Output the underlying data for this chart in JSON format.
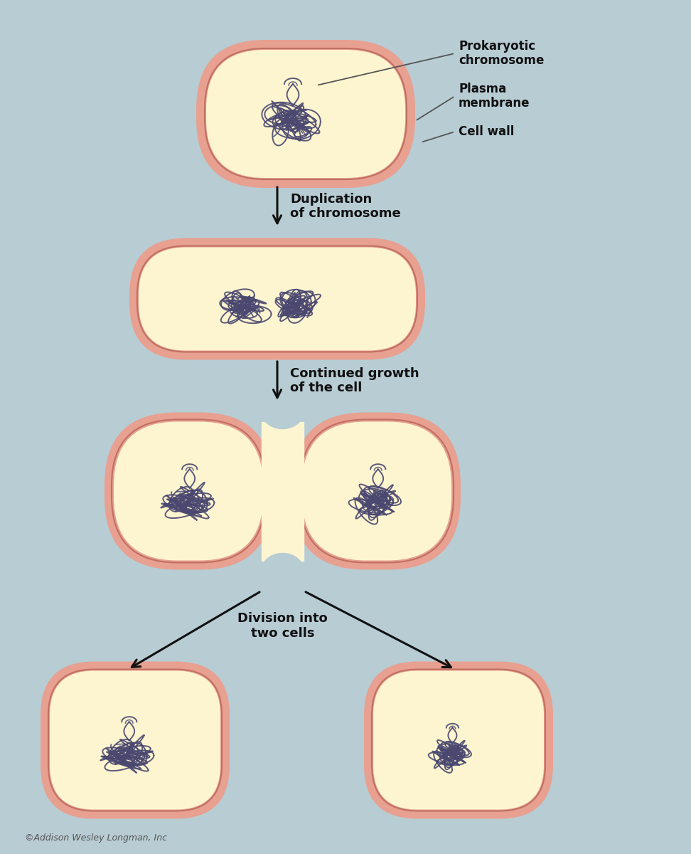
{
  "bg_color": "#b8ccd4",
  "cell_wall_color": "#e8a090",
  "cell_wall_edge_color": "#c07060",
  "cell_interior_color": "#fdf5d0",
  "chromosome_color": "#4a4870",
  "chromosome_lw": 1.4,
  "arrow_color": "#111111",
  "label_color": "#111111",
  "line_color": "#555555",
  "copyright_text": "©Addison Wesley Longman, Inc",
  "labels": {
    "prokaryotic_chromosome": "Prokaryotic\nchromosome",
    "plasma_membrane": "Plasma\nmembrane",
    "cell_wall": "Cell wall",
    "duplication": "Duplication\nof chromosome",
    "continued_growth": "Continued growth\nof the cell",
    "division": "Division into\ntwo cells"
  }
}
